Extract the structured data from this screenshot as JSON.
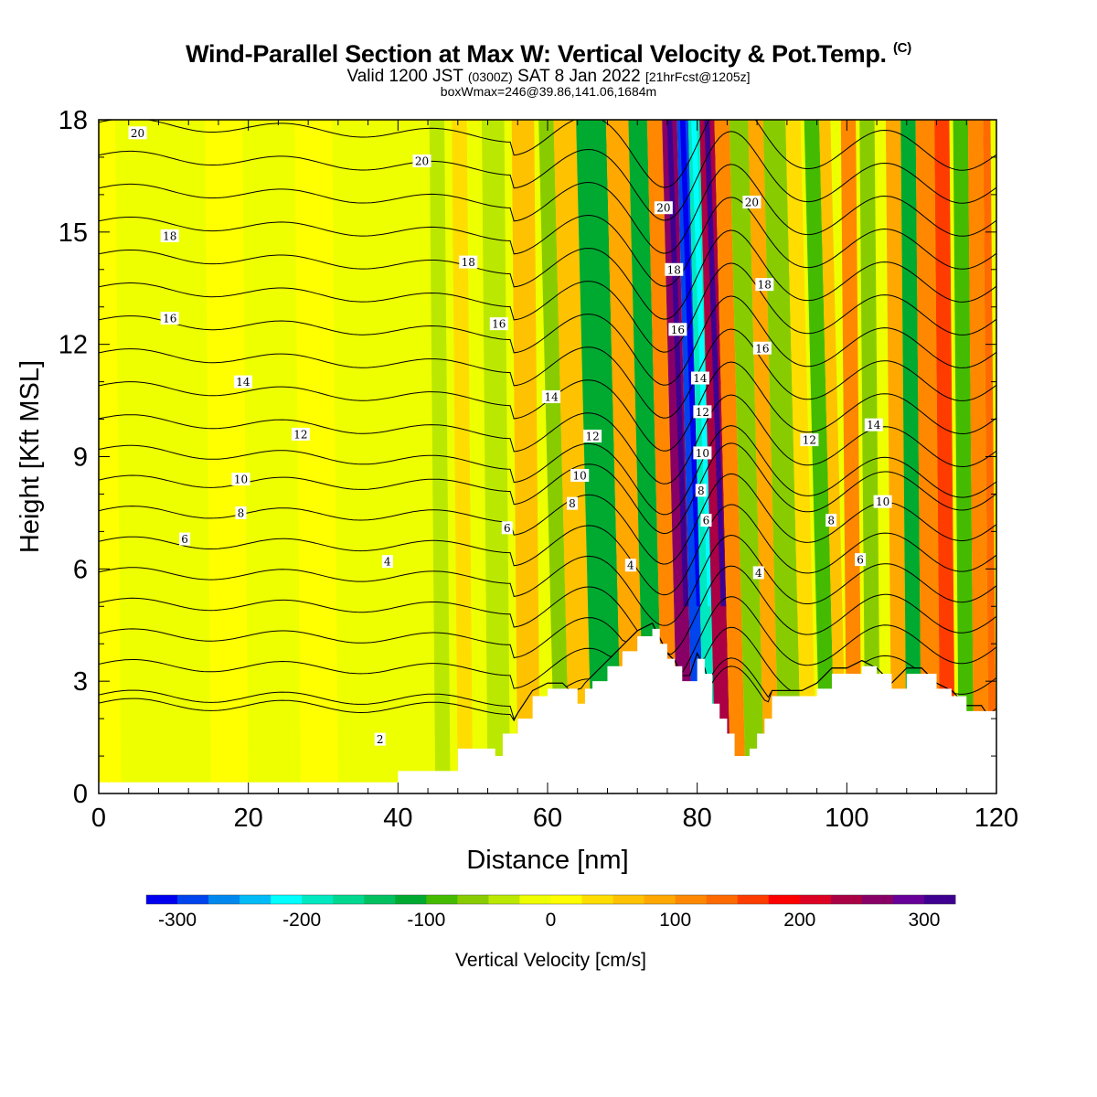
{
  "title": {
    "main": "Wind-Parallel Section at Max W: Vertical Velocity & Pot.Temp.",
    "copyright": "(C)"
  },
  "subtitle": {
    "valid": "Valid 1200 JST",
    "utc": "(0300Z)",
    "date": "SAT 8 Jan 2022",
    "forecast": "[21hrFcst@1205z]",
    "box_note": "boxWmax=246@39.86,141.06,1684m"
  },
  "chart_data": {
    "type": "heatmap",
    "xlabel": "Distance [nm]",
    "ylabel": "Height [Kft MSL]",
    "xlim": [
      0,
      120
    ],
    "ylim": [
      0,
      18
    ],
    "x_ticks": [
      0,
      20,
      40,
      60,
      80,
      100,
      120
    ],
    "y_ticks": [
      0,
      3,
      6,
      9,
      12,
      15,
      18
    ],
    "colorbar": {
      "label": "Vertical Velocity [cm/s]",
      "min": -325,
      "max": 325,
      "step": 25,
      "tick_values": [
        -300,
        -200,
        -100,
        0,
        100,
        200,
        300
      ],
      "colors": [
        "#0000ee",
        "#0044ee",
        "#0088ee",
        "#00bbf6",
        "#00ffff",
        "#00e8c0",
        "#00d890",
        "#00c060",
        "#00aa30",
        "#44bb00",
        "#88cc00",
        "#bbe800",
        "#eeff00",
        "#ffff00",
        "#ffdd00",
        "#ffc200",
        "#ffa800",
        "#ff8800",
        "#ff6a00",
        "#ff3c00",
        "#ff0000",
        "#dd0022",
        "#aa0044",
        "#880066",
        "#660099",
        "#3d0090"
      ]
    },
    "terrain_profile": {
      "x": [
        0,
        10,
        20,
        30,
        39,
        40,
        42,
        45,
        48,
        50,
        52,
        53,
        54,
        55,
        56,
        58,
        60,
        62,
        64,
        65,
        66,
        68,
        70,
        72,
        74,
        75,
        76,
        77,
        78,
        79,
        80,
        81,
        82,
        83,
        84,
        85,
        86,
        87,
        88,
        89,
        90,
        92,
        94,
        96,
        98,
        100,
        102,
        104,
        106,
        108,
        110,
        112,
        114,
        116,
        118,
        120
      ],
      "height": [
        0.3,
        0.3,
        0.3,
        0.3,
        0.3,
        0.6,
        0.6,
        0.6,
        1.2,
        1.2,
        1.2,
        1.0,
        1.6,
        1.6,
        2.0,
        2.6,
        2.8,
        2.8,
        2.4,
        2.8,
        3.0,
        3.4,
        3.8,
        4.2,
        4.4,
        4.0,
        3.6,
        3.4,
        3.0,
        3.0,
        3.6,
        3.2,
        2.4,
        2.0,
        1.6,
        1.0,
        1.0,
        1.2,
        1.6,
        2.0,
        2.6,
        2.6,
        2.6,
        2.8,
        3.2,
        3.2,
        3.4,
        3.2,
        2.8,
        3.2,
        3.2,
        2.8,
        2.6,
        2.2,
        2.2,
        1.6
      ]
    },
    "wbands": [
      {
        "x0": 0,
        "x1": 3,
        "w": 0
      },
      {
        "x0": 15,
        "x1": 20,
        "w": 10
      },
      {
        "x0": 27,
        "x1": 32,
        "w": 10
      },
      {
        "x0": 35,
        "x1": 37,
        "w": -25
      },
      {
        "x0": 45,
        "x1": 47,
        "w": -40
      },
      {
        "x0": 48,
        "x1": 50,
        "w": 40
      },
      {
        "x0": 52,
        "x1": 55,
        "w": -50
      },
      {
        "x0": 56,
        "x1": 59,
        "w": 60
      },
      {
        "x0": 61,
        "x1": 63,
        "w": -60
      },
      {
        "x0": 63,
        "x1": 66,
        "w": 60
      },
      {
        "x0": 66,
        "x1": 70,
        "w": -110
      },
      {
        "x0": 70,
        "x1": 73,
        "w": 80
      },
      {
        "x0": 73,
        "x1": 75.5,
        "w": -110
      },
      {
        "x0": 75.5,
        "x1": 77.5,
        "w": 120
      },
      {
        "x0": 77.5,
        "x1": 79.5,
        "w": 250
      },
      {
        "x0": 79.5,
        "x1": 81,
        "w": -280
      },
      {
        "x0": 81,
        "x1": 82.5,
        "w": -190
      },
      {
        "x0": 82.5,
        "x1": 84.5,
        "w": 240
      },
      {
        "x0": 84.5,
        "x1": 86.5,
        "w": 120
      },
      {
        "x0": 86.5,
        "x1": 89,
        "w": -60
      },
      {
        "x0": 89,
        "x1": 91,
        "w": 90
      },
      {
        "x0": 91,
        "x1": 94,
        "w": -70
      },
      {
        "x0": 94,
        "x1": 96,
        "w": 40
      },
      {
        "x0": 96.5,
        "x1": 98.5,
        "w": -80
      },
      {
        "x0": 98.5,
        "x1": 100,
        "w": 50
      },
      {
        "x0": 100,
        "x1": 102,
        "w": 110
      },
      {
        "x0": 102.5,
        "x1": 104.5,
        "w": -60
      },
      {
        "x0": 106,
        "x1": 108,
        "w": 80
      },
      {
        "x0": 108,
        "x1": 110,
        "w": -110
      },
      {
        "x0": 110,
        "x1": 112.5,
        "w": 120
      },
      {
        "x0": 112.5,
        "x1": 114.5,
        "w": 170
      },
      {
        "x0": 115,
        "x1": 117,
        "w": -90
      },
      {
        "x0": 117,
        "x1": 119,
        "w": 110
      },
      {
        "x0": 119,
        "x1": 120,
        "w": 140
      }
    ],
    "contour_levels": [
      2,
      3,
      4,
      5,
      6,
      7,
      8,
      9,
      10,
      11,
      12,
      13,
      14,
      15,
      16,
      17,
      18,
      19,
      20,
      21
    ],
    "contour_labels": [
      {
        "text": "20",
        "x": 5.2,
        "y": 17.65
      },
      {
        "text": "20",
        "x": 43.2,
        "y": 16.9
      },
      {
        "text": "20",
        "x": 75.5,
        "y": 15.65
      },
      {
        "text": "20",
        "x": 87.3,
        "y": 15.8
      },
      {
        "text": "18",
        "x": 9.5,
        "y": 14.9
      },
      {
        "text": "18",
        "x": 49.4,
        "y": 14.2
      },
      {
        "text": "18",
        "x": 76.9,
        "y": 14.0
      },
      {
        "text": "18",
        "x": 89.0,
        "y": 13.6
      },
      {
        "text": "16",
        "x": 9.5,
        "y": 12.7
      },
      {
        "text": "16",
        "x": 53.5,
        "y": 12.55
      },
      {
        "text": "16",
        "x": 77.4,
        "y": 12.4
      },
      {
        "text": "16",
        "x": 88.7,
        "y": 11.9
      },
      {
        "text": "14",
        "x": 19.3,
        "y": 11.0
      },
      {
        "text": "14",
        "x": 60.5,
        "y": 10.6
      },
      {
        "text": "14",
        "x": 80.4,
        "y": 11.1
      },
      {
        "text": "14",
        "x": 103.6,
        "y": 9.85
      },
      {
        "text": "12",
        "x": 27.0,
        "y": 9.6
      },
      {
        "text": "12",
        "x": 66.0,
        "y": 9.55
      },
      {
        "text": "12",
        "x": 80.7,
        "y": 10.2
      },
      {
        "text": "12",
        "x": 95.0,
        "y": 9.45
      },
      {
        "text": "10",
        "x": 19.0,
        "y": 8.4
      },
      {
        "text": "10",
        "x": 64.3,
        "y": 8.5
      },
      {
        "text": "10",
        "x": 80.7,
        "y": 9.1
      },
      {
        "text": "10",
        "x": 104.8,
        "y": 7.8
      },
      {
        "text": "8",
        "x": 19.0,
        "y": 7.5
      },
      {
        "text": "8",
        "x": 63.3,
        "y": 7.75
      },
      {
        "text": "8",
        "x": 80.5,
        "y": 8.1
      },
      {
        "text": "8",
        "x": 97.9,
        "y": 7.3
      },
      {
        "text": "6",
        "x": 11.5,
        "y": 6.8
      },
      {
        "text": "6",
        "x": 54.6,
        "y": 7.1
      },
      {
        "text": "6",
        "x": 81.2,
        "y": 7.3
      },
      {
        "text": "6",
        "x": 101.8,
        "y": 6.25
      },
      {
        "text": "4",
        "x": 38.6,
        "y": 6.2
      },
      {
        "text": "4",
        "x": 71.1,
        "y": 6.1
      },
      {
        "text": "4",
        "x": 88.2,
        "y": 5.9
      },
      {
        "text": "2",
        "x": 37.6,
        "y": 1.45
      }
    ]
  }
}
